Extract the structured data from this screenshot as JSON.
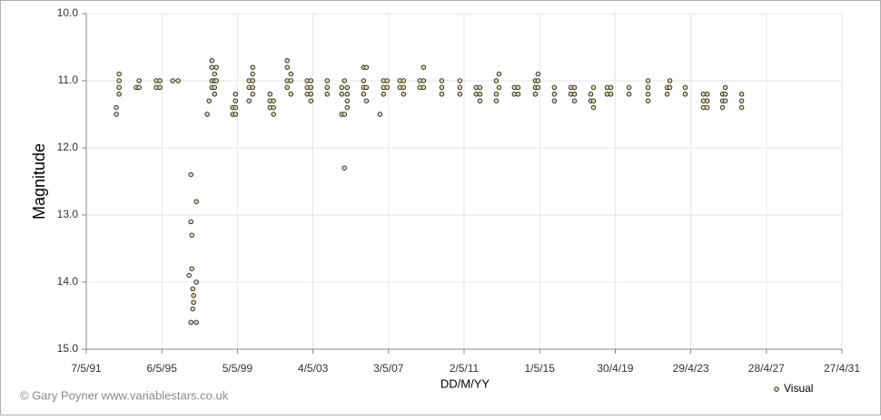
{
  "chart_data": {
    "type": "scatter",
    "x_label": "DD/M/YY",
    "y_label": "Magnitude",
    "credit": "© Gary Poyner www.variablestars.co.uk",
    "legend": "bottom-right",
    "grid": true,
    "invert_y": true,
    "xlim": [
      "1991-05-07",
      "2031-04-27"
    ],
    "xticks": [
      {
        "value": "1991-05-07",
        "label": "7/5/91"
      },
      {
        "value": "1995-05-06",
        "label": "6/5/95"
      },
      {
        "value": "1999-05-05",
        "label": "5/5/99"
      },
      {
        "value": "2003-05-04",
        "label": "4/5/03"
      },
      {
        "value": "2007-05-03",
        "label": "3/5/07"
      },
      {
        "value": "2011-05-02",
        "label": "2/5/11"
      },
      {
        "value": "2015-05-01",
        "label": "1/5/15"
      },
      {
        "value": "2019-04-30",
        "label": "30/4/19"
      },
      {
        "value": "2023-04-29",
        "label": "29/4/23"
      },
      {
        "value": "2027-04-28",
        "label": "28/4/27"
      },
      {
        "value": "2031-04-27",
        "label": "27/4/31"
      }
    ],
    "ylim": [
      10,
      15
    ],
    "yticks": [
      {
        "value": 10,
        "label": "10.0"
      },
      {
        "value": 11,
        "label": "11.0"
      },
      {
        "value": 12,
        "label": "12.0"
      },
      {
        "value": 13,
        "label": "13.0"
      },
      {
        "value": 14,
        "label": "14.0"
      },
      {
        "value": 15,
        "label": "15.0"
      }
    ],
    "series": [
      {
        "name": "Visual",
        "color": "#d9d9a6",
        "x": [
          "1992-12-08",
          "1992-12-08",
          "1993-01-30",
          "1993-01-30",
          "1993-01-30",
          "1993-01-30",
          "1993-12-28",
          "1994-02-20",
          "1994-02-20",
          "1995-01-20",
          "1995-01-20",
          "1995-03-30",
          "1995-03-30",
          "1995-12-01",
          "1996-03-16",
          "1996-10-13",
          "1996-11-17",
          "1996-11-17",
          "1996-11-17",
          "1996-12-05",
          "1996-12-05",
          "1996-12-23",
          "1996-12-23",
          "1997-01-08",
          "1997-01-08",
          "1997-03-03",
          "1997-03-03",
          "1997-03-03",
          "1997-09-28",
          "1997-11-03",
          "1997-12-27",
          "1997-12-27",
          "1997-12-27",
          "1997-12-27",
          "1998-02-17",
          "1998-02-17",
          "1998-02-17",
          "1998-02-17",
          "1998-03-23",
          "1998-03-23",
          "1999-02-03",
          "1999-02-03",
          "1999-03-28",
          "1999-03-28",
          "1999-03-28",
          "1999-03-28",
          "1999-12-16",
          "1999-12-16",
          "1999-12-16",
          "2000-02-24",
          "2000-02-24",
          "2000-02-24",
          "2000-02-24",
          "2000-02-24",
          "2001-01-23",
          "2001-01-23",
          "2001-01-23",
          "2001-04-02",
          "2001-04-02",
          "2001-04-02",
          "2001-12-22",
          "2001-12-22",
          "2001-12-22",
          "2001-12-22",
          "2002-03-03",
          "2002-03-03",
          "2002-03-03",
          "2003-01-12",
          "2003-01-12",
          "2003-01-12",
          "2003-03-24",
          "2003-03-24",
          "2003-03-24",
          "2003-03-24",
          "2004-02-03",
          "2004-02-03",
          "2004-02-03",
          "2004-11-10",
          "2004-11-10",
          "2004-11-10",
          "2005-01-01",
          "2005-01-01",
          "2005-01-01",
          "2005-02-24",
          "2005-02-24",
          "2005-02-24",
          "2005-02-24",
          "2006-01-05",
          "2006-01-05",
          "2006-01-05",
          "2006-01-05",
          "2006-02-27",
          "2006-02-27",
          "2006-02-27",
          "2006-11-17",
          "2007-01-26",
          "2007-01-26",
          "2007-01-26",
          "2007-04-06",
          "2007-04-06",
          "2007-12-08",
          "2007-12-08",
          "2008-02-17",
          "2008-02-17",
          "2008-02-17",
          "2008-12-28",
          "2008-12-28",
          "2009-03-10",
          "2009-03-10",
          "2009-03-10",
          "2010-02-24",
          "2010-02-24",
          "2010-02-24",
          "2011-02-09",
          "2011-02-09",
          "2011-02-09",
          "2011-12-22",
          "2011-12-22",
          "2012-03-03",
          "2012-03-03",
          "2012-03-03",
          "2013-01-12",
          "2013-01-12",
          "2013-01-12",
          "2013-03-06",
          "2013-03-06",
          "2013-12-28",
          "2013-12-28",
          "2014-03-10",
          "2014-03-10",
          "2015-02-06",
          "2015-02-06",
          "2015-02-06",
          "2015-03-30",
          "2015-03-30",
          "2015-03-30",
          "2016-02-09",
          "2016-02-09",
          "2016-02-09",
          "2016-12-22",
          "2016-12-22",
          "2017-03-03",
          "2017-03-03",
          "2017-03-03",
          "2018-01-12",
          "2018-01-12",
          "2018-03-06",
          "2018-03-06",
          "2018-03-06",
          "2018-11-24",
          "2018-11-24",
          "2019-02-03",
          "2019-02-03",
          "2020-01-20",
          "2020-01-20",
          "2021-01-23",
          "2021-01-23",
          "2021-01-23",
          "2021-01-23",
          "2022-01-26",
          "2022-01-26",
          "2022-03-20",
          "2022-03-20",
          "2023-01-12",
          "2023-01-12",
          "2023-12-28",
          "2023-12-28",
          "2023-12-28",
          "2024-03-10",
          "2024-03-10",
          "2024-03-10",
          "2025-01-01",
          "2025-01-01",
          "2025-01-01",
          "2025-02-24",
          "2025-02-24",
          "2025-02-24",
          "2026-01-05",
          "2026-01-05",
          "2026-01-05"
        ],
        "values": [
          11.4,
          11.5,
          10.9,
          11.0,
          11.1,
          11.2,
          11.1,
          11.0,
          11.1,
          11.0,
          11.1,
          11.0,
          11.1,
          11.0,
          11.0,
          13.9,
          12.4,
          13.1,
          14.6,
          13.3,
          13.8,
          14.1,
          14.4,
          14.2,
          14.3,
          12.8,
          14.0,
          14.6,
          11.5,
          11.3,
          10.7,
          10.8,
          11.0,
          11.1,
          10.9,
          11.0,
          11.1,
          11.2,
          10.8,
          11.0,
          11.4,
          11.5,
          11.2,
          11.3,
          11.4,
          11.5,
          11.0,
          11.1,
          11.3,
          10.8,
          10.9,
          11.0,
          11.1,
          11.2,
          11.2,
          11.3,
          11.4,
          11.3,
          11.4,
          11.5,
          10.7,
          10.8,
          11.0,
          11.1,
          10.9,
          11.0,
          11.2,
          11.0,
          11.1,
          11.2,
          11.0,
          11.1,
          11.2,
          11.3,
          11.0,
          11.1,
          11.2,
          11.1,
          11.2,
          11.5,
          11.0,
          11.5,
          12.3,
          11.1,
          11.2,
          11.3,
          11.4,
          10.8,
          11.0,
          11.1,
          11.2,
          10.8,
          11.1,
          11.3,
          11.5,
          11.0,
          11.1,
          11.2,
          11.0,
          11.1,
          11.0,
          11.1,
          11.0,
          11.1,
          11.2,
          11.0,
          11.1,
          10.8,
          11.0,
          11.1,
          11.0,
          11.1,
          11.2,
          11.0,
          11.1,
          11.2,
          11.1,
          11.2,
          11.1,
          11.2,
          11.3,
          11.0,
          11.2,
          11.3,
          10.9,
          11.1,
          11.1,
          11.2,
          11.1,
          11.2,
          11.0,
          11.1,
          11.2,
          10.9,
          11.0,
          11.1,
          11.1,
          11.2,
          11.3,
          11.1,
          11.2,
          11.1,
          11.2,
          11.3,
          11.2,
          11.3,
          11.1,
          11.3,
          11.4,
          11.1,
          11.2,
          11.1,
          11.2,
          11.1,
          11.2,
          11.0,
          11.1,
          11.2,
          11.3,
          11.1,
          11.2,
          11.0,
          11.1,
          11.1,
          11.2,
          11.2,
          11.3,
          11.4,
          11.2,
          11.3,
          11.4,
          11.2,
          11.3,
          11.4,
          11.1,
          11.2,
          11.3,
          11.2,
          11.3,
          11.4
        ]
      }
    ]
  }
}
